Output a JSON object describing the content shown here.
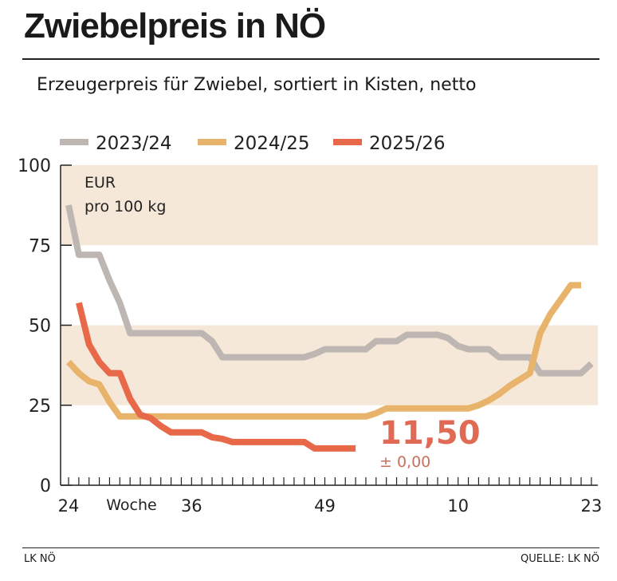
{
  "title": "Zwiebelpreis in NÖ",
  "subtitle": "Erzeugerpreis für Zwiebel, sortiert in Kisten, netto",
  "footer": {
    "left": "LK NÖ",
    "right": "QUELLE: LK NÖ"
  },
  "chart_data": {
    "type": "line",
    "unit_label": [
      "EUR",
      "pro 100 kg"
    ],
    "xlabel": "Woche",
    "ylim": [
      0,
      100
    ],
    "yticks": [
      0,
      25,
      50,
      75,
      100
    ],
    "x": [
      24,
      25,
      26,
      27,
      28,
      29,
      30,
      31,
      32,
      33,
      34,
      35,
      36,
      37,
      38,
      39,
      40,
      41,
      42,
      43,
      44,
      45,
      46,
      47,
      48,
      49,
      50,
      51,
      52,
      1,
      2,
      3,
      4,
      5,
      6,
      7,
      8,
      9,
      10,
      11,
      12,
      13,
      14,
      15,
      16,
      17,
      18,
      19,
      20,
      21,
      22,
      23
    ],
    "xtick_labels": [
      "24",
      "36",
      "49",
      "10",
      "23"
    ],
    "shaded_bands": [
      [
        25,
        50
      ],
      [
        75,
        100
      ]
    ],
    "grid": false,
    "legend_position": "top",
    "series": [
      {
        "name": "2023/24",
        "color": "#bdb6b2",
        "values": [
          87.5,
          72,
          72,
          72,
          64,
          57,
          47.5,
          47.5,
          47.5,
          47.5,
          47.5,
          47.5,
          47.5,
          47.5,
          45,
          40,
          40,
          40,
          40,
          40,
          40,
          40,
          40,
          40,
          41,
          42.5,
          42.5,
          42.5,
          42.5,
          42.5,
          45,
          45,
          45,
          47,
          47,
          47,
          47,
          46,
          43.5,
          42.5,
          42.5,
          42.5,
          40,
          40,
          40,
          40,
          35,
          35,
          35,
          35,
          35,
          38
        ]
      },
      {
        "name": "2024/25",
        "color": "#e8b46c",
        "values": [
          38.5,
          35,
          32.5,
          31.5,
          26,
          21.5,
          21.5,
          21.5,
          21.5,
          21.5,
          21.5,
          21.5,
          21.5,
          21.5,
          21.5,
          21.5,
          21.5,
          21.5,
          21.5,
          21.5,
          21.5,
          21.5,
          21.5,
          21.5,
          21.5,
          21.5,
          21.5,
          21.5,
          21.5,
          21.5,
          22.5,
          24,
          24,
          24,
          24,
          24,
          24,
          24,
          24,
          24,
          25,
          26.5,
          28.5,
          31,
          33,
          35,
          47.5,
          53.5,
          58,
          62.5,
          62.5,
          null
        ]
      },
      {
        "name": "2025/26",
        "color": "#e8694a",
        "values": [
          null,
          57,
          44,
          38.5,
          35,
          35,
          27,
          22,
          21,
          18.5,
          16.5,
          16.5,
          16.5,
          16.5,
          15,
          14.5,
          13.5,
          13.5,
          13.5,
          13.5,
          13.5,
          13.5,
          13.5,
          13.5,
          11.5,
          11.5,
          11.5,
          11.5,
          11.5,
          null,
          null,
          null,
          null,
          null,
          null,
          null,
          null,
          null,
          null,
          null,
          null,
          null,
          null,
          null,
          null,
          null,
          null,
          null,
          null,
          null,
          null,
          null
        ]
      }
    ],
    "annotation": {
      "value": "11,50",
      "change": "± 0,00",
      "color": "#e06a54",
      "change_color": "#c8705f"
    },
    "band_color": "#f6e8d8"
  }
}
